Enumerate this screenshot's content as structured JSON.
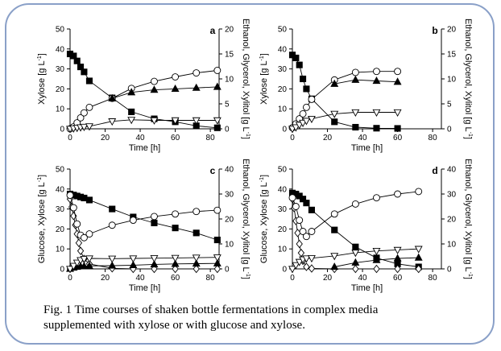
{
  "caption": {
    "line1": "Fig. 1  Time courses of shaken bottle fermentations in complex media",
    "line2": "supplemented with xylose or with glucose and xylose."
  },
  "colors": {
    "frame": "#8aa0c8",
    "ink": "#000000",
    "background": "#ffffff"
  },
  "chart_data": [
    {
      "panel": "a",
      "type": "line",
      "xlabel": "Time [h]",
      "ylabel": "Xylose [g L-1]",
      "y2label": "Ethanol, Glycerol, Xylitol [g L-1]",
      "xlim": [
        0,
        85
      ],
      "xticks": [
        0,
        20,
        40,
        60,
        80
      ],
      "ylim": [
        0,
        50
      ],
      "yticks": [
        0,
        10,
        20,
        30,
        40,
        50
      ],
      "y2lim": [
        0,
        20
      ],
      "y2ticks": [
        0,
        5,
        10,
        15,
        20
      ],
      "series": [
        {
          "marker": "square-filled",
          "axis": "y",
          "x": [
            0,
            2,
            4,
            6,
            8,
            11,
            24,
            35,
            48,
            60,
            72,
            84
          ],
          "y": [
            37.5,
            36.5,
            34,
            31,
            28.5,
            24,
            15.5,
            8.5,
            5,
            3.5,
            1.5,
            0.5
          ]
        },
        {
          "marker": "circle-open",
          "axis": "y2",
          "x": [
            0,
            2,
            4,
            6,
            8,
            11,
            24,
            35,
            48,
            60,
            72,
            84
          ],
          "y": [
            0,
            0.4,
            1.2,
            2.2,
            3.2,
            4.3,
            6.1,
            8.1,
            9.5,
            10.4,
            11.2,
            11.7
          ]
        },
        {
          "marker": "triangle-up-filled",
          "axis": "y2",
          "x": [
            24,
            35,
            48,
            60,
            72,
            84
          ],
          "y": [
            6.1,
            7.3,
            7.8,
            8,
            8.2,
            8.4
          ]
        },
        {
          "marker": "triangle-down-open",
          "axis": "y2",
          "x": [
            0,
            2,
            4,
            6,
            8,
            11,
            24,
            35,
            48,
            60,
            72,
            84
          ],
          "y": [
            0,
            0.1,
            0.2,
            0.3,
            0.4,
            0.5,
            1.5,
            1.8,
            1.7,
            1.7,
            1.7,
            1.7
          ]
        }
      ]
    },
    {
      "panel": "b",
      "type": "line",
      "xlabel": "Time [h]",
      "ylabel": "Xylose [g L-1]",
      "y2label": "Ethanol, Glycerol, Xylitol [g L-1]",
      "xlim": [
        0,
        85
      ],
      "xticks": [
        0,
        20,
        40,
        60,
        80
      ],
      "ylim": [
        0,
        50
      ],
      "yticks": [
        0,
        10,
        20,
        30,
        40,
        50
      ],
      "y2lim": [
        0,
        20
      ],
      "y2ticks": [
        0,
        5,
        10,
        15,
        20
      ],
      "series": [
        {
          "marker": "square-filled",
          "axis": "y",
          "x": [
            0,
            2,
            4,
            6,
            8,
            11,
            24,
            36,
            48,
            60
          ],
          "y": [
            37,
            35.5,
            32,
            25,
            20,
            15,
            3.5,
            0.8,
            0.3,
            0.2
          ]
        },
        {
          "marker": "circle-open",
          "axis": "y2",
          "x": [
            0,
            2,
            4,
            6,
            8,
            11,
            24,
            36,
            48,
            60
          ],
          "y": [
            0.2,
            1.0,
            2.0,
            3.0,
            4.3,
            5.9,
            9.8,
            11.3,
            11.5,
            11.5
          ]
        },
        {
          "marker": "triangle-up-filled",
          "axis": "y2",
          "x": [
            24,
            36,
            48,
            60
          ],
          "y": [
            9.0,
            9.8,
            9.6,
            9.4
          ]
        },
        {
          "marker": "triangle-down-open",
          "axis": "y2",
          "x": [
            0,
            2,
            4,
            6,
            8,
            11,
            24,
            36,
            48,
            60
          ],
          "y": [
            0,
            0.3,
            0.8,
            1.2,
            1.6,
            2.0,
            3.0,
            3.3,
            3.3,
            3.3
          ]
        }
      ]
    },
    {
      "panel": "c",
      "type": "line",
      "xlabel": "Time [h]",
      "ylabel": "Glucose, Xylose [g L-1]",
      "y2label": "Ethanol, Glycerol, Xylitol [g L-1]",
      "xlim": [
        0,
        85
      ],
      "xticks": [
        0,
        20,
        40,
        60,
        80
      ],
      "ylim": [
        0,
        50
      ],
      "yticks": [
        0,
        10,
        20,
        30,
        40,
        50
      ],
      "y2lim": [
        0,
        40
      ],
      "y2ticks": [
        0,
        10,
        20,
        30,
        40
      ],
      "series": [
        {
          "marker": "square-filled",
          "axis": "y",
          "x": [
            0,
            2,
            4,
            6,
            8,
            11,
            24,
            36,
            48,
            60,
            72,
            84
          ],
          "y": [
            37.5,
            37,
            36.5,
            36,
            35.5,
            34.5,
            30,
            26,
            23,
            20.5,
            18,
            14.5
          ]
        },
        {
          "marker": "diamond-open",
          "axis": "y",
          "x": [
            0,
            1,
            2,
            3,
            4,
            5,
            6,
            8,
            11,
            24,
            36,
            48,
            60,
            72,
            84
          ],
          "y": [
            35,
            31,
            26.5,
            22,
            17.5,
            13,
            9,
            5,
            2.5,
            0.3,
            0,
            0,
            0,
            0,
            0
          ]
        },
        {
          "marker": "circle-open",
          "axis": "y2",
          "x": [
            0,
            2,
            4,
            6,
            8,
            11,
            24,
            36,
            48,
            60,
            72,
            84
          ],
          "y": [
            29.5,
            24.5,
            18,
            13.5,
            12.5,
            14,
            17.5,
            19.5,
            21,
            22,
            23,
            23.5
          ]
        },
        {
          "marker": "triangle-up-filled",
          "axis": "y2",
          "x": [
            0,
            2,
            4,
            6,
            8,
            11,
            24,
            36,
            48,
            60,
            72,
            84
          ],
          "y": [
            0,
            0.5,
            0.8,
            1.0,
            1.1,
            1.2,
            1.3,
            1.5,
            1.8,
            2.0,
            2.1,
            2.2
          ]
        },
        {
          "marker": "triangle-down-open",
          "axis": "y2",
          "x": [
            0,
            2,
            4,
            6,
            8,
            11,
            24,
            36,
            48,
            60,
            72,
            84
          ],
          "y": [
            0,
            1.2,
            2.5,
            3.5,
            4.0,
            4.2,
            4.1,
            4.2,
            4.3,
            4.4,
            4.5,
            4.6
          ]
        }
      ]
    },
    {
      "panel": "d",
      "type": "line",
      "xlabel": "Time [h]",
      "ylabel": "Glucose, Xylose [g L-1]",
      "y2label": "Ethanol, Glycerol, Xylitol [g L-1]",
      "xlim": [
        0,
        85
      ],
      "xticks": [
        0,
        20,
        40,
        60,
        80
      ],
      "ylim": [
        0,
        50
      ],
      "yticks": [
        0,
        10,
        20,
        30,
        40,
        50
      ],
      "y2lim": [
        0,
        40
      ],
      "y2ticks": [
        0,
        10,
        20,
        30,
        40
      ],
      "series": [
        {
          "marker": "square-filled",
          "axis": "y",
          "x": [
            0,
            2,
            4,
            6,
            8,
            11,
            24,
            36,
            48,
            60,
            72
          ],
          "y": [
            38,
            37.5,
            36.5,
            35,
            33,
            29.5,
            19.5,
            11,
            5.5,
            2.5,
            1.0
          ]
        },
        {
          "marker": "diamond-open",
          "axis": "y",
          "x": [
            0,
            1,
            2,
            3,
            4,
            5,
            6,
            8,
            11,
            24,
            36,
            48,
            60,
            72
          ],
          "y": [
            35,
            30.5,
            24,
            18,
            12.5,
            8,
            4,
            1,
            0.2,
            0,
            0,
            0,
            0,
            0
          ]
        },
        {
          "marker": "circle-open",
          "axis": "y2",
          "x": [
            0,
            2,
            4,
            6,
            8,
            11,
            24,
            36,
            48,
            60,
            72
          ],
          "y": [
            28.5,
            25,
            19.5,
            15,
            13,
            15,
            22,
            26,
            28.5,
            30,
            31
          ]
        },
        {
          "marker": "triangle-up-filled",
          "axis": "y2",
          "x": [
            24,
            36,
            48,
            60,
            72
          ],
          "y": [
            0.8,
            2.5,
            3.5,
            4.2,
            4.5
          ]
        },
        {
          "marker": "triangle-down-open",
          "axis": "y2",
          "x": [
            0,
            2,
            4,
            6,
            8,
            11,
            24,
            36,
            48,
            60,
            72
          ],
          "y": [
            0,
            1.5,
            2.8,
            3.8,
            4.2,
            4.3,
            5.2,
            6.5,
            7.2,
            7.6,
            8.0
          ]
        }
      ]
    }
  ]
}
